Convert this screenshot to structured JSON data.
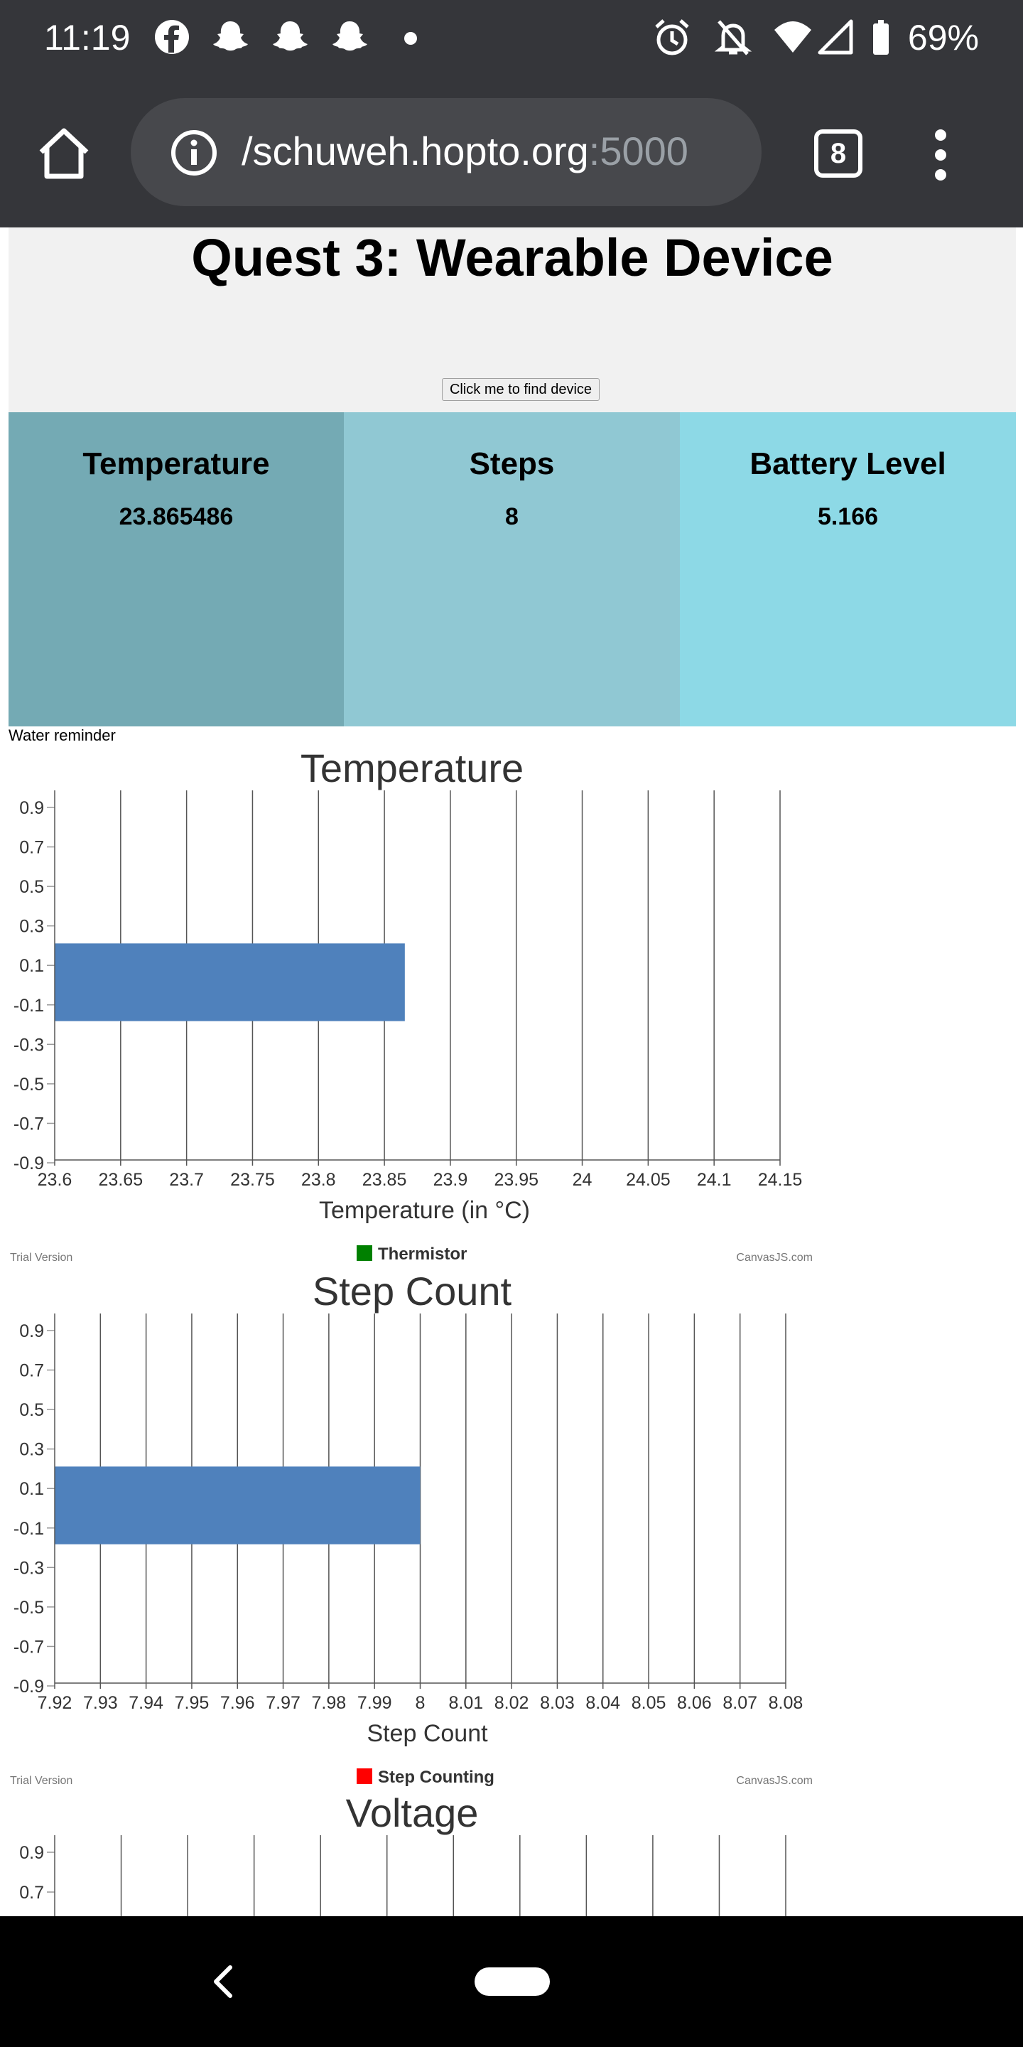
{
  "status_bar": {
    "time": "11:19",
    "battery": "69%",
    "icons": [
      "facebook-icon",
      "snapchat-icon",
      "snapchat-icon",
      "snapchat-icon",
      "dot-icon",
      "alarm-icon",
      "bell-off-icon",
      "wifi-icon",
      "signal-icon",
      "battery-icon"
    ]
  },
  "browser": {
    "url_host": "/schuweh.hopto.org",
    "url_port": ":5000",
    "tab_count": "8"
  },
  "page": {
    "title": "Quest 3: Wearable Device",
    "find_button": "Click me to find device",
    "cards": [
      {
        "label": "Temperature",
        "value": "23.865486",
        "color": "#74aab4"
      },
      {
        "label": "Steps",
        "value": "8",
        "color": "#90c8d3"
      },
      {
        "label": "Battery Level",
        "value": "5.166",
        "color": "#8dd9e6"
      }
    ],
    "water_reminder": "Water reminder"
  },
  "chart_data": [
    {
      "type": "bar",
      "title": "Temperature",
      "xlabel": "Temperature (in °C)",
      "x_ticks": [
        "23.6",
        "23.65",
        "23.7",
        "23.75",
        "23.8",
        "23.85",
        "23.9",
        "23.95",
        "24",
        "24.05",
        "24.1",
        "24.15"
      ],
      "x_range": [
        23.6,
        24.15
      ],
      "y_ticks": [
        "0.9",
        "0.7",
        "0.5",
        "0.3",
        "0.1",
        "-0.1",
        "-0.3",
        "-0.5",
        "-0.7",
        "-0.9"
      ],
      "value": 23.865486,
      "bar_color": "#4f81bc",
      "legend": {
        "name": "Thermistor",
        "color": "#008000"
      },
      "watermark_left": "Trial Version",
      "watermark_right": "CanvasJS.com"
    },
    {
      "type": "bar",
      "title": "Step Count",
      "xlabel": "Step Count",
      "x_ticks": [
        "7.92",
        "7.93",
        "7.94",
        "7.95",
        "7.96",
        "7.97",
        "7.98",
        "7.99",
        "8",
        "8.01",
        "8.02",
        "8.03",
        "8.04",
        "8.05",
        "8.06",
        "8.07",
        "8.08"
      ],
      "x_range": [
        7.92,
        8.08
      ],
      "y_ticks": [
        "0.9",
        "0.7",
        "0.5",
        "0.3",
        "0.1",
        "-0.1",
        "-0.3",
        "-0.5",
        "-0.7",
        "-0.9"
      ],
      "value": 8,
      "bar_color": "#4f81bc",
      "legend": {
        "name": "Step Counting",
        "color": "#ff0000"
      },
      "watermark_left": "Trial Version",
      "watermark_right": "CanvasJS.com"
    },
    {
      "type": "bar",
      "title": "Voltage",
      "y_ticks": [
        "0.9",
        "0.7"
      ],
      "x_tick_count": 12
    }
  ]
}
